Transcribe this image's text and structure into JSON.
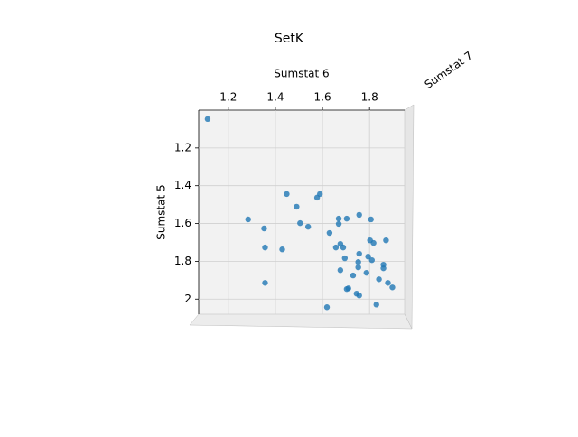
{
  "chart_data": {
    "type": "scatter",
    "title": "SetK",
    "x_label": "Sumstat 6",
    "y_label": "Sumstat 5",
    "z_label": "Sumstat 7",
    "color": "#1f77b4",
    "grid": true,
    "y_inverted": true,
    "xlim": [
      1.074,
      1.949
    ],
    "ylim": [
      1.0,
      2.08
    ],
    "xticks": [
      1.2,
      1.4,
      1.6,
      1.8
    ],
    "yticks": [
      1.2,
      1.4,
      1.6,
      1.8,
      2.0
    ],
    "x": [
      1.112,
      1.448,
      1.577,
      1.589,
      1.284,
      1.352,
      1.49,
      1.505,
      1.539,
      1.356,
      1.429,
      1.356,
      1.63,
      1.669,
      1.669,
      1.703,
      1.756,
      1.806,
      1.676,
      1.688,
      1.657,
      1.802,
      1.817,
      1.87,
      1.695,
      1.756,
      1.794,
      1.752,
      1.752,
      1.787,
      1.676,
      1.73,
      1.81,
      1.859,
      1.859,
      1.84,
      1.878,
      1.897,
      1.703,
      1.71,
      1.745,
      1.756,
      1.829,
      1.619
    ],
    "values": [
      1.047,
      1.444,
      1.463,
      1.444,
      1.578,
      1.626,
      1.511,
      1.598,
      1.617,
      1.727,
      1.737,
      1.914,
      1.65,
      1.574,
      1.602,
      1.574,
      1.554,
      1.578,
      1.708,
      1.727,
      1.727,
      1.689,
      1.703,
      1.689,
      1.784,
      1.76,
      1.775,
      1.804,
      1.832,
      1.861,
      1.847,
      1.875,
      1.794,
      1.818,
      1.837,
      1.895,
      1.914,
      1.938,
      1.947,
      1.943,
      1.971,
      1.981,
      2.029,
      2.043
    ]
  }
}
